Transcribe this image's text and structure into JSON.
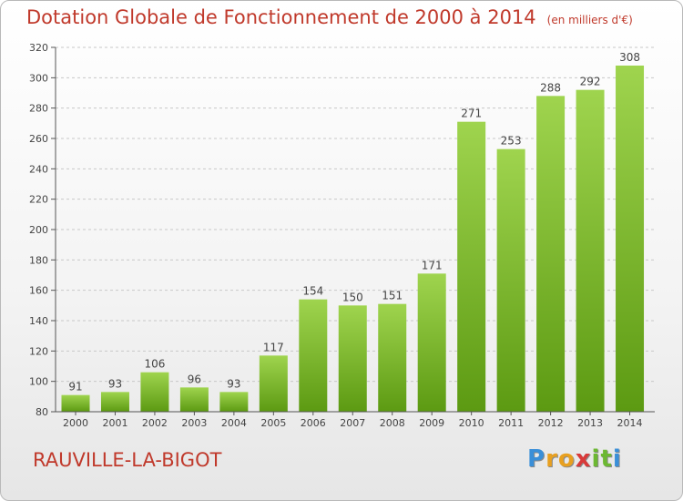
{
  "header": {
    "title": "Dotation Globale de Fonctionnement de 2000 à 2014",
    "unit_note": "(en milliers d'€)"
  },
  "footer": {
    "commune": "RAUVILLE-LA-BIGOT",
    "logo": "Proxiti",
    "logo_letters": [
      {
        "ch": "P",
        "color": "#3a8fd8"
      },
      {
        "ch": "r",
        "color": "#e8a020"
      },
      {
        "ch": "o",
        "color": "#e8a020"
      },
      {
        "ch": "x",
        "color": "#d83a3a"
      },
      {
        "ch": "i",
        "color": "#6cb832"
      },
      {
        "ch": "t",
        "color": "#6cb832"
      },
      {
        "ch": "i",
        "color": "#3a8fd8"
      }
    ]
  },
  "colors": {
    "title": "#c0392b",
    "bar_top": "#9fd44e",
    "bar_bottom": "#5c9a12",
    "grid": "#c8c8c8"
  },
  "chart_data": {
    "type": "bar",
    "title": "Dotation Globale de Fonctionnement de 2000 à 2014",
    "subtitle": "(en milliers d'€)",
    "xlabel": "",
    "ylabel": "",
    "categories": [
      "2000",
      "2001",
      "2002",
      "2003",
      "2004",
      "2005",
      "2006",
      "2007",
      "2008",
      "2009",
      "2010",
      "2011",
      "2012",
      "2013",
      "2014"
    ],
    "values": [
      91,
      93,
      106,
      96,
      93,
      117,
      154,
      150,
      151,
      171,
      271,
      253,
      288,
      292,
      308
    ],
    "ylim": [
      80,
      320
    ],
    "yticks": [
      80,
      100,
      120,
      140,
      160,
      180,
      200,
      220,
      240,
      260,
      280,
      300,
      320
    ],
    "grid": true,
    "legend": "none"
  }
}
